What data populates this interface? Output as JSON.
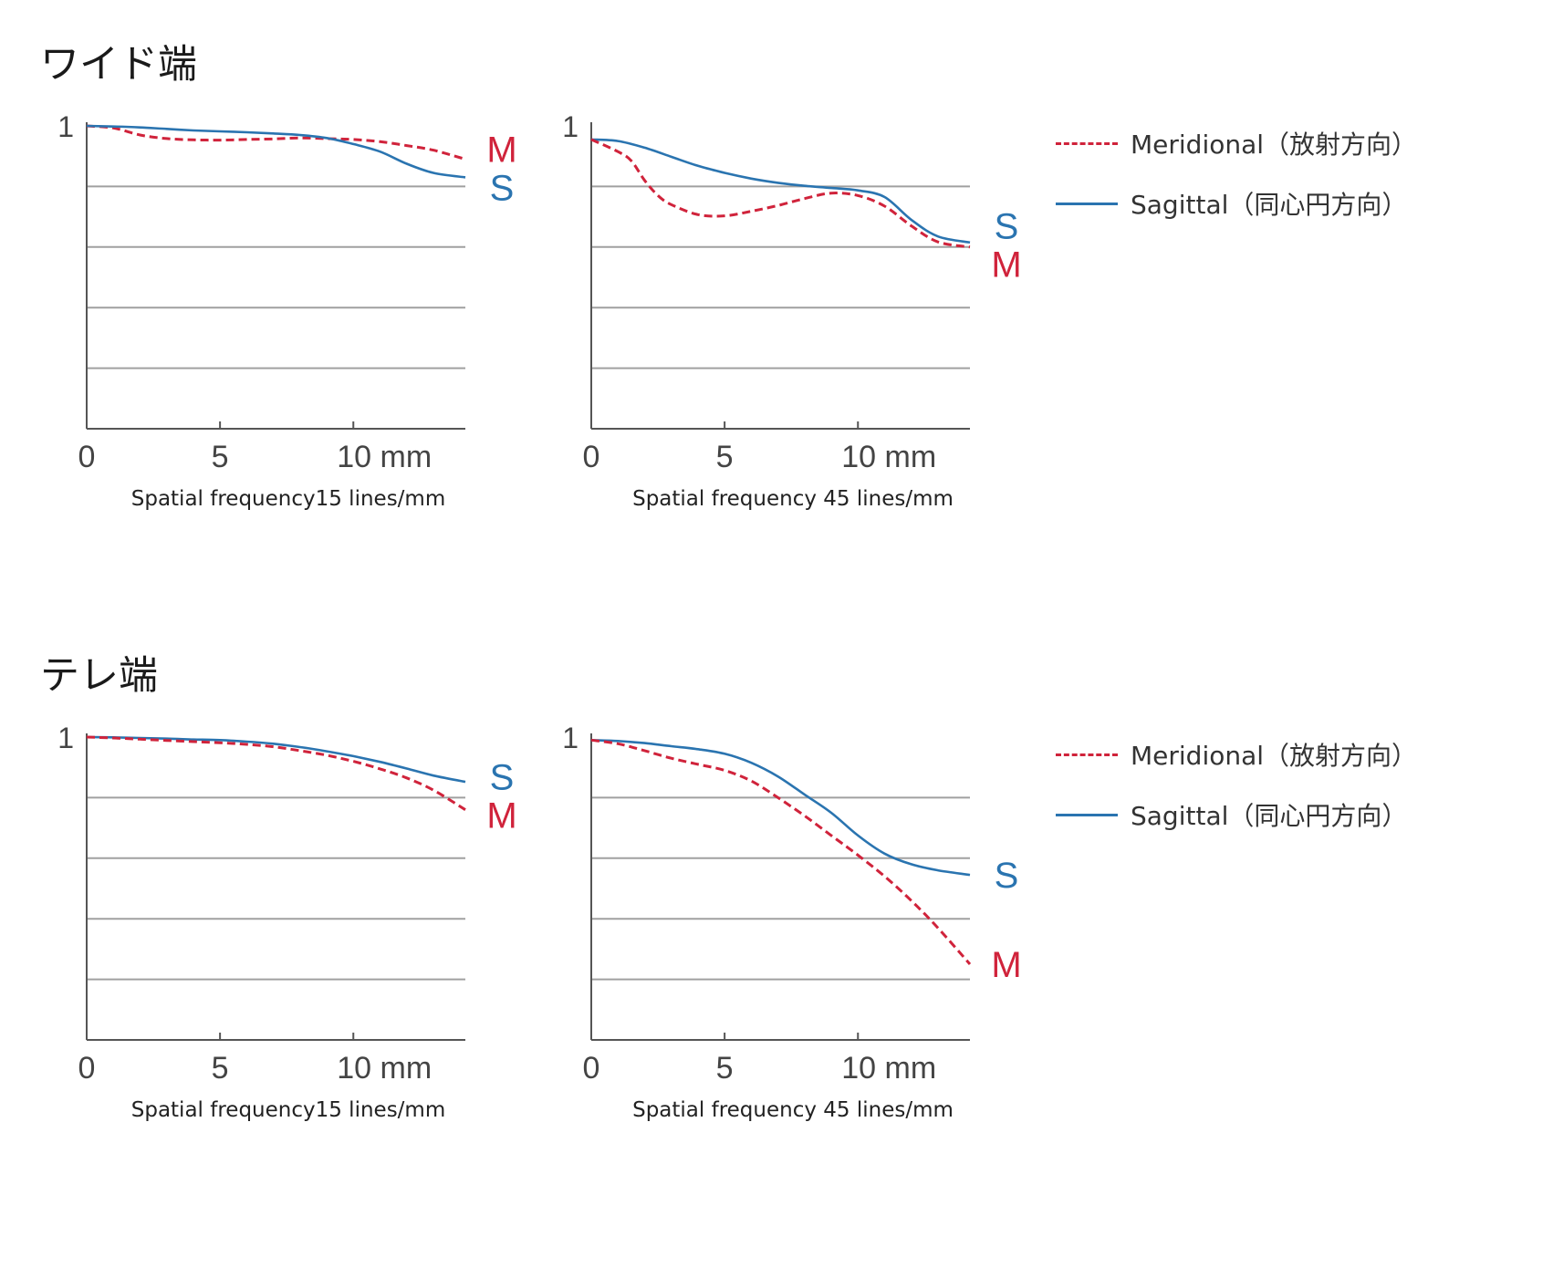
{
  "sections": [
    {
      "title": "ワイド端",
      "legend": {
        "meridional": "Meridional（放射方向）",
        "sagittal": "Sagittal（同心円方向）"
      }
    },
    {
      "title": "テレ端",
      "legend": {
        "meridional": "Meridional（放射方向）",
        "sagittal": "Sagittal（同心円方向）"
      }
    }
  ],
  "colors": {
    "meridional": "#d0233b",
    "sagittal": "#2a74b0",
    "axis": "#555555",
    "grid": "#a0a0a0"
  },
  "chart_data": [
    {
      "type": "line",
      "section": "ワイド端",
      "caption": "Spatial frequency15 lines/mm",
      "x_ticks": [
        "0",
        "5",
        "10 mm"
      ],
      "y_tick_label": "1",
      "xlim": [
        0,
        14.2
      ],
      "ylim": [
        0,
        1
      ],
      "grid": "horizontal",
      "series": [
        {
          "name": "M",
          "style": "dashed",
          "x": [
            0,
            1,
            2,
            3,
            4,
            5,
            6,
            7,
            8,
            9,
            10,
            11,
            12,
            13,
            14.2
          ],
          "y": [
            1.0,
            0.993,
            0.97,
            0.958,
            0.954,
            0.953,
            0.955,
            0.957,
            0.96,
            0.958,
            0.955,
            0.948,
            0.935,
            0.92,
            0.89
          ]
        },
        {
          "name": "S",
          "style": "solid",
          "x": [
            0,
            1,
            2,
            3,
            4,
            5,
            6,
            7,
            8,
            9,
            10,
            11,
            12,
            13,
            14.2
          ],
          "y": [
            1.0,
            0.998,
            0.995,
            0.99,
            0.985,
            0.982,
            0.979,
            0.975,
            0.97,
            0.96,
            0.94,
            0.915,
            0.875,
            0.845,
            0.83
          ]
        }
      ]
    },
    {
      "type": "line",
      "section": "ワイド端",
      "caption": "Spatial frequency 45 lines/mm",
      "x_ticks": [
        "0",
        "5",
        "10 mm"
      ],
      "y_tick_label": "1",
      "xlim": [
        0,
        14.2
      ],
      "ylim": [
        0,
        1
      ],
      "grid": "horizontal",
      "series": [
        {
          "name": "S",
          "style": "solid",
          "x": [
            0,
            1,
            2,
            3,
            4,
            5,
            6,
            7,
            8,
            9,
            10,
            11,
            12,
            13,
            14.2
          ],
          "y": [
            0.955,
            0.95,
            0.928,
            0.898,
            0.868,
            0.845,
            0.826,
            0.812,
            0.802,
            0.795,
            0.787,
            0.765,
            0.69,
            0.635,
            0.615
          ]
        },
        {
          "name": "M",
          "style": "dashed",
          "x": [
            0,
            1,
            1.5,
            2,
            2.5,
            3,
            4,
            5,
            6,
            7,
            8,
            9,
            10,
            11,
            12,
            13,
            14.2
          ],
          "y": [
            0.955,
            0.915,
            0.885,
            0.82,
            0.77,
            0.74,
            0.707,
            0.703,
            0.718,
            0.737,
            0.76,
            0.778,
            0.77,
            0.735,
            0.67,
            0.617,
            0.6
          ]
        }
      ]
    },
    {
      "type": "line",
      "section": "テレ端",
      "caption": "Spatial frequency15 lines/mm",
      "x_ticks": [
        "0",
        "5",
        "10 mm"
      ],
      "y_tick_label": "1",
      "xlim": [
        0,
        14.2
      ],
      "ylim": [
        0,
        1
      ],
      "grid": "horizontal",
      "series": [
        {
          "name": "S",
          "style": "solid",
          "x": [
            0,
            1,
            2,
            3,
            4,
            5,
            6,
            7,
            8,
            9,
            10,
            11,
            12,
            13,
            14.2
          ],
          "y": [
            1.0,
            0.999,
            0.997,
            0.995,
            0.992,
            0.99,
            0.985,
            0.978,
            0.967,
            0.953,
            0.937,
            0.918,
            0.896,
            0.873,
            0.852
          ]
        },
        {
          "name": "M",
          "style": "dashed",
          "x": [
            0,
            1,
            2,
            3,
            4,
            5,
            6,
            7,
            8,
            9,
            10,
            11,
            12,
            13,
            14.2
          ],
          "y": [
            1.0,
            0.997,
            0.993,
            0.989,
            0.985,
            0.981,
            0.976,
            0.968,
            0.955,
            0.94,
            0.92,
            0.895,
            0.865,
            0.825,
            0.76
          ]
        }
      ]
    },
    {
      "type": "line",
      "section": "テレ端",
      "caption": "Spatial frequency 45 lines/mm",
      "x_ticks": [
        "0",
        "5",
        "10 mm"
      ],
      "y_tick_label": "1",
      "xlim": [
        0,
        14.2
      ],
      "ylim": [
        0,
        1
      ],
      "grid": "horizontal",
      "series": [
        {
          "name": "S",
          "style": "solid",
          "x": [
            0,
            1,
            2,
            3,
            4,
            5,
            6,
            7,
            8,
            9,
            10,
            11,
            12,
            13,
            14.2
          ],
          "y": [
            0.99,
            0.987,
            0.98,
            0.97,
            0.96,
            0.945,
            0.915,
            0.87,
            0.81,
            0.75,
            0.675,
            0.615,
            0.58,
            0.56,
            0.545
          ]
        },
        {
          "name": "M",
          "style": "dashed",
          "x": [
            0,
            1,
            2,
            3,
            4,
            5,
            6,
            7,
            8,
            9,
            10,
            11,
            12,
            13,
            14.2
          ],
          "y": [
            0.99,
            0.978,
            0.955,
            0.93,
            0.91,
            0.89,
            0.855,
            0.8,
            0.74,
            0.675,
            0.61,
            0.54,
            0.46,
            0.37,
            0.25
          ]
        }
      ]
    }
  ]
}
